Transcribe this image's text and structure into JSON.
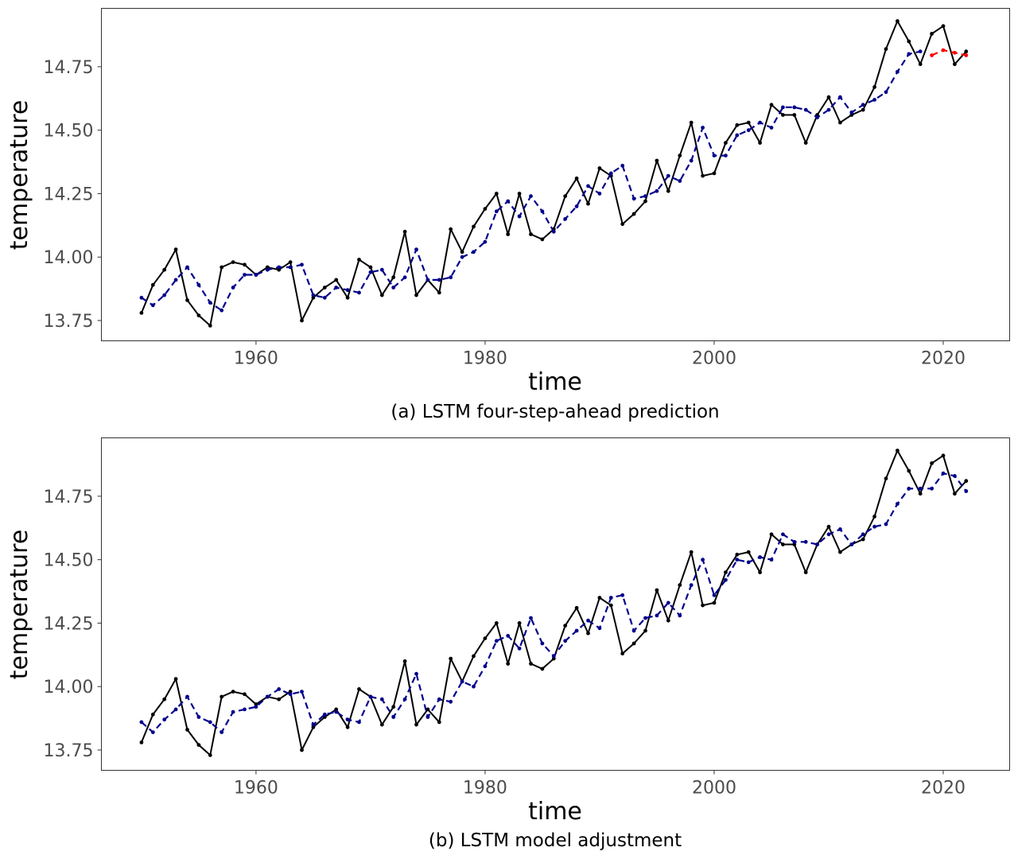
{
  "chart_data": [
    {
      "type": "line",
      "caption": "(a) LSTM four-step-ahead prediction",
      "xlabel": "time",
      "ylabel": "temperature",
      "xlim": [
        1946.5,
        2025.8
      ],
      "ylim": [
        13.67,
        14.98
      ],
      "xticks": [
        1960,
        1980,
        2000,
        2020
      ],
      "xtick_labels": [
        "1960",
        "1980",
        "2000",
        "2020"
      ],
      "yticks": [
        13.75,
        14.0,
        14.25,
        14.5,
        14.75
      ],
      "ytick_labels": [
        "13.75",
        "14.00",
        "14.25",
        "14.50",
        "14.75"
      ],
      "grid": false,
      "series": [
        {
          "role": "observed",
          "style": "solid",
          "color": "#000000",
          "x": [
            1950,
            1951,
            1952,
            1953,
            1954,
            1955,
            1956,
            1957,
            1958,
            1959,
            1960,
            1961,
            1962,
            1963,
            1964,
            1965,
            1966,
            1967,
            1968,
            1969,
            1970,
            1971,
            1972,
            1973,
            1974,
            1975,
            1976,
            1977,
            1978,
            1979,
            1980,
            1981,
            1982,
            1983,
            1984,
            1985,
            1986,
            1987,
            1988,
            1989,
            1990,
            1991,
            1992,
            1993,
            1994,
            1995,
            1996,
            1997,
            1998,
            1999,
            2000,
            2001,
            2002,
            2003,
            2004,
            2005,
            2006,
            2007,
            2008,
            2009,
            2010,
            2011,
            2012,
            2013,
            2014,
            2015,
            2016,
            2017,
            2018,
            2019,
            2020,
            2021,
            2022
          ],
          "y": [
            13.78,
            13.89,
            13.95,
            14.03,
            13.83,
            13.77,
            13.73,
            13.96,
            13.98,
            13.97,
            13.93,
            13.96,
            13.95,
            13.98,
            13.75,
            13.84,
            13.88,
            13.91,
            13.84,
            13.99,
            13.96,
            13.85,
            13.92,
            14.1,
            13.85,
            13.91,
            13.86,
            14.11,
            14.02,
            14.12,
            14.19,
            14.25,
            14.09,
            14.25,
            14.09,
            14.07,
            14.11,
            14.24,
            14.31,
            14.21,
            14.35,
            14.32,
            14.13,
            14.17,
            14.22,
            14.38,
            14.26,
            14.4,
            14.53,
            14.32,
            14.33,
            14.45,
            14.52,
            14.53,
            14.45,
            14.6,
            14.56,
            14.56,
            14.45,
            14.56,
            14.63,
            14.53,
            14.56,
            14.58,
            14.67,
            14.82,
            14.93,
            14.85,
            14.76,
            14.88,
            14.91,
            14.76,
            14.81
          ]
        },
        {
          "role": "fitted",
          "style": "dashed",
          "color": "#00008b",
          "x": [
            1950,
            1951,
            1952,
            1953,
            1954,
            1955,
            1956,
            1957,
            1958,
            1959,
            1960,
            1961,
            1962,
            1963,
            1964,
            1965,
            1966,
            1967,
            1968,
            1969,
            1970,
            1971,
            1972,
            1973,
            1974,
            1975,
            1976,
            1977,
            1978,
            1979,
            1980,
            1981,
            1982,
            1983,
            1984,
            1985,
            1986,
            1987,
            1988,
            1989,
            1990,
            1991,
            1992,
            1993,
            1994,
            1995,
            1996,
            1997,
            1998,
            1999,
            2000,
            2001,
            2002,
            2003,
            2004,
            2005,
            2006,
            2007,
            2008,
            2009,
            2010,
            2011,
            2012,
            2013,
            2014,
            2015,
            2016,
            2017,
            2018
          ],
          "y": [
            13.84,
            13.81,
            13.85,
            13.91,
            13.96,
            13.89,
            13.82,
            13.79,
            13.88,
            13.93,
            13.93,
            13.95,
            13.96,
            13.96,
            13.97,
            13.85,
            13.84,
            13.88,
            13.87,
            13.86,
            13.94,
            13.95,
            13.88,
            13.92,
            14.03,
            13.91,
            13.91,
            13.92,
            14.0,
            14.02,
            14.06,
            14.18,
            14.22,
            14.16,
            14.24,
            14.18,
            14.1,
            14.15,
            14.2,
            14.28,
            14.25,
            14.33,
            14.36,
            14.23,
            14.24,
            14.26,
            14.32,
            14.3,
            14.38,
            14.51,
            14.4,
            14.4,
            14.48,
            14.5,
            14.53,
            14.51,
            14.59,
            14.59,
            14.58,
            14.55,
            14.58,
            14.63,
            14.57,
            14.6,
            14.62,
            14.65,
            14.73,
            14.8,
            14.81
          ]
        },
        {
          "role": "forecast",
          "style": "dashed",
          "color": "#ff0000",
          "x": [
            2019,
            2020,
            2021,
            2022
          ],
          "y": [
            14.795,
            14.815,
            14.805,
            14.795
          ]
        }
      ]
    },
    {
      "type": "line",
      "caption": "(b) LSTM model adjustment",
      "xlabel": "time",
      "ylabel": "temperature",
      "xlim": [
        1946.5,
        2025.8
      ],
      "ylim": [
        13.67,
        14.98
      ],
      "xticks": [
        1960,
        1980,
        2000,
        2020
      ],
      "xtick_labels": [
        "1960",
        "1980",
        "2000",
        "2020"
      ],
      "yticks": [
        13.75,
        14.0,
        14.25,
        14.5,
        14.75
      ],
      "ytick_labels": [
        "13.75",
        "14.00",
        "14.25",
        "14.50",
        "14.75"
      ],
      "grid": false,
      "series": [
        {
          "role": "observed",
          "style": "solid",
          "color": "#000000",
          "x": [
            1950,
            1951,
            1952,
            1953,
            1954,
            1955,
            1956,
            1957,
            1958,
            1959,
            1960,
            1961,
            1962,
            1963,
            1964,
            1965,
            1966,
            1967,
            1968,
            1969,
            1970,
            1971,
            1972,
            1973,
            1974,
            1975,
            1976,
            1977,
            1978,
            1979,
            1980,
            1981,
            1982,
            1983,
            1984,
            1985,
            1986,
            1987,
            1988,
            1989,
            1990,
            1991,
            1992,
            1993,
            1994,
            1995,
            1996,
            1997,
            1998,
            1999,
            2000,
            2001,
            2002,
            2003,
            2004,
            2005,
            2006,
            2007,
            2008,
            2009,
            2010,
            2011,
            2012,
            2013,
            2014,
            2015,
            2016,
            2017,
            2018,
            2019,
            2020,
            2021,
            2022
          ],
          "y": [
            13.78,
            13.89,
            13.95,
            14.03,
            13.83,
            13.77,
            13.73,
            13.96,
            13.98,
            13.97,
            13.93,
            13.96,
            13.95,
            13.98,
            13.75,
            13.84,
            13.88,
            13.91,
            13.84,
            13.99,
            13.96,
            13.85,
            13.92,
            14.1,
            13.85,
            13.91,
            13.86,
            14.11,
            14.02,
            14.12,
            14.19,
            14.25,
            14.09,
            14.25,
            14.09,
            14.07,
            14.11,
            14.24,
            14.31,
            14.21,
            14.35,
            14.32,
            14.13,
            14.17,
            14.22,
            14.38,
            14.26,
            14.4,
            14.53,
            14.32,
            14.33,
            14.45,
            14.52,
            14.53,
            14.45,
            14.6,
            14.56,
            14.56,
            14.45,
            14.56,
            14.63,
            14.53,
            14.56,
            14.58,
            14.67,
            14.82,
            14.93,
            14.85,
            14.76,
            14.88,
            14.91,
            14.76,
            14.81
          ]
        },
        {
          "role": "fitted",
          "style": "dashed",
          "color": "#00008b",
          "x": [
            1950,
            1951,
            1952,
            1953,
            1954,
            1955,
            1956,
            1957,
            1958,
            1959,
            1960,
            1961,
            1962,
            1963,
            1964,
            1965,
            1966,
            1967,
            1968,
            1969,
            1970,
            1971,
            1972,
            1973,
            1974,
            1975,
            1976,
            1977,
            1978,
            1979,
            1980,
            1981,
            1982,
            1983,
            1984,
            1985,
            1986,
            1987,
            1988,
            1989,
            1990,
            1991,
            1992,
            1993,
            1994,
            1995,
            1996,
            1997,
            1998,
            1999,
            2000,
            2001,
            2002,
            2003,
            2004,
            2005,
            2006,
            2007,
            2008,
            2009,
            2010,
            2011,
            2012,
            2013,
            2014,
            2015,
            2016,
            2017,
            2018,
            2019,
            2020,
            2021,
            2022
          ],
          "y": [
            13.86,
            13.82,
            13.87,
            13.91,
            13.96,
            13.88,
            13.86,
            13.82,
            13.9,
            13.91,
            13.92,
            13.96,
            13.99,
            13.97,
            13.98,
            13.85,
            13.89,
            13.9,
            13.87,
            13.86,
            13.96,
            13.95,
            13.88,
            13.95,
            14.05,
            13.88,
            13.95,
            13.94,
            14.02,
            14.0,
            14.08,
            14.18,
            14.2,
            14.15,
            14.27,
            14.17,
            14.12,
            14.18,
            14.22,
            14.26,
            14.23,
            14.35,
            14.36,
            14.22,
            14.27,
            14.28,
            14.33,
            14.28,
            14.4,
            14.5,
            14.36,
            14.42,
            14.5,
            14.49,
            14.51,
            14.5,
            14.6,
            14.57,
            14.57,
            14.56,
            14.6,
            14.62,
            14.56,
            14.6,
            14.63,
            14.64,
            14.72,
            14.78,
            14.78,
            14.78,
            14.84,
            14.83,
            14.77
          ]
        }
      ]
    }
  ]
}
